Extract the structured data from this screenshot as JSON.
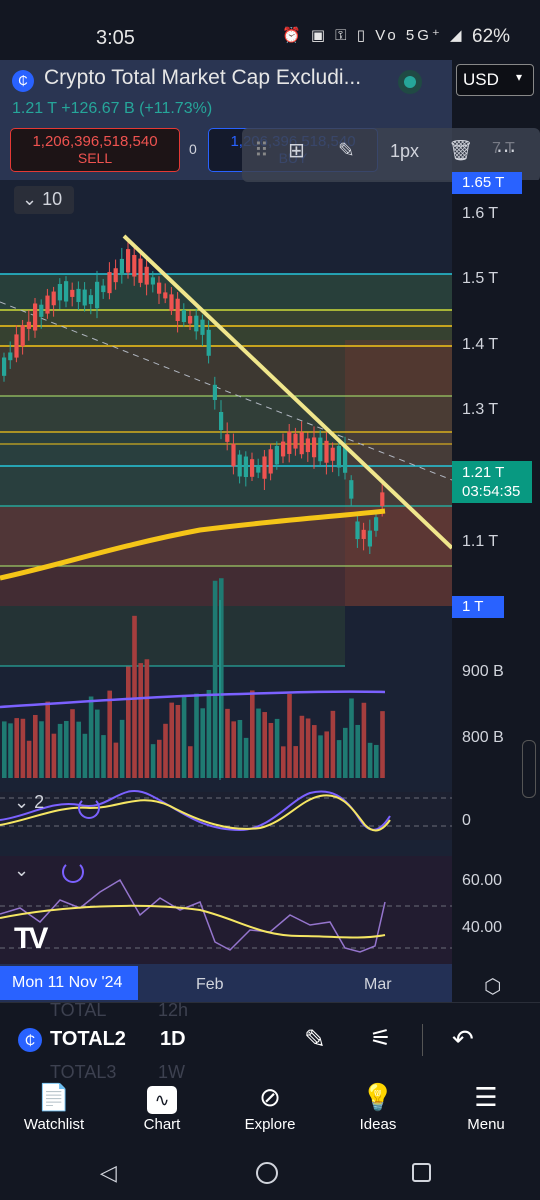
{
  "status_bar": {
    "time": "3:05",
    "icons_text": "⏰ ▣ ⚿ ▯ Vo 5G⁺ ◢",
    "battery": "62%"
  },
  "header": {
    "symbol_logo": "₵",
    "title": "Crypto Total Market Cap Excludi...",
    "currency": "USD",
    "price_line": "1.21 T  +126.67 B (+11.73%)",
    "sell_price": "1,206,396,518,540",
    "sell_label": "SELL",
    "spread": "0",
    "buy_price": "1,206,396,518,540",
    "buy_label": "BUY"
  },
  "drawing_toolbar": {
    "width_label": "1px",
    "icons": [
      "drag-handle-icon",
      "group-icon",
      "pencil-color-icon",
      "trash-icon",
      "more-icon"
    ]
  },
  "chart": {
    "volume_toggle": "10",
    "price_scale": {
      "top_marker": "1.65 T",
      "labels": [
        "1.6 T",
        "1.5 T",
        "1.4 T",
        "1.3 T",
        "1.1 T",
        "900 B",
        "800 B"
      ],
      "current_price": "1.21 T",
      "countdown": "03:54:35",
      "low_marker": "1 T",
      "partial_label": "7 T"
    },
    "indicator1": {
      "toggle": "2",
      "value": "0"
    },
    "indicator2": {
      "top": "60.00",
      "bottom": "40.00"
    },
    "time_axis": {
      "cursor_label": "Mon 11 Nov '24",
      "labels": [
        "Feb",
        "Mar"
      ]
    },
    "colors": {
      "up": "#26a69a",
      "down": "#ef5350",
      "ma": "#f5c518",
      "trendline": "#f0e68c",
      "accent": "#2962ff"
    }
  },
  "symbol_bar": {
    "logo": "₵",
    "symbol": "TOTAL2",
    "interval": "1D",
    "ghost_symbols": [
      "TOTAL",
      "12h",
      "TOTAL3",
      "1W"
    ]
  },
  "bottom_nav": {
    "items": [
      {
        "label": "Watchlist",
        "icon": "watchlist-icon"
      },
      {
        "label": "Chart",
        "icon": "chart-icon"
      },
      {
        "label": "Explore",
        "icon": "compass-icon"
      },
      {
        "label": "Ideas",
        "icon": "lightbulb-icon"
      },
      {
        "label": "Menu",
        "icon": "hamburger-icon"
      }
    ]
  }
}
